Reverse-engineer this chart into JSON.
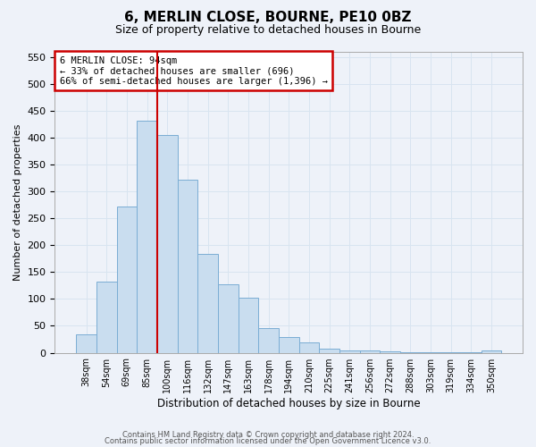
{
  "title": "6, MERLIN CLOSE, BOURNE, PE10 0BZ",
  "subtitle": "Size of property relative to detached houses in Bourne",
  "xlabel": "Distribution of detached houses by size in Bourne",
  "ylabel": "Number of detached properties",
  "bar_color": "#c9ddef",
  "bar_edge_color": "#7aadd4",
  "background_color": "#eef2f9",
  "grid_color": "#d8e4f0",
  "categories": [
    "38sqm",
    "54sqm",
    "69sqm",
    "85sqm",
    "100sqm",
    "116sqm",
    "132sqm",
    "147sqm",
    "163sqm",
    "178sqm",
    "194sqm",
    "210sqm",
    "225sqm",
    "241sqm",
    "256sqm",
    "272sqm",
    "288sqm",
    "303sqm",
    "319sqm",
    "334sqm",
    "350sqm"
  ],
  "values": [
    35,
    133,
    272,
    432,
    405,
    322,
    183,
    127,
    103,
    45,
    30,
    19,
    8,
    5,
    5,
    2,
    1,
    1,
    1,
    1,
    5
  ],
  "ylim": [
    0,
    560
  ],
  "yticks": [
    0,
    50,
    100,
    150,
    200,
    250,
    300,
    350,
    400,
    450,
    500,
    550
  ],
  "vline_position": 3.5,
  "annotation_line1": "6 MERLIN CLOSE: 94sqm",
  "annotation_line2": "← 33% of detached houses are smaller (696)",
  "annotation_line3": "66% of semi-detached houses are larger (1,396) →",
  "vline_color": "#cc0000",
  "annotation_box_edge_color": "#cc0000",
  "footer_line1": "Contains HM Land Registry data © Crown copyright and database right 2024.",
  "footer_line2": "Contains public sector information licensed under the Open Government Licence v3.0."
}
